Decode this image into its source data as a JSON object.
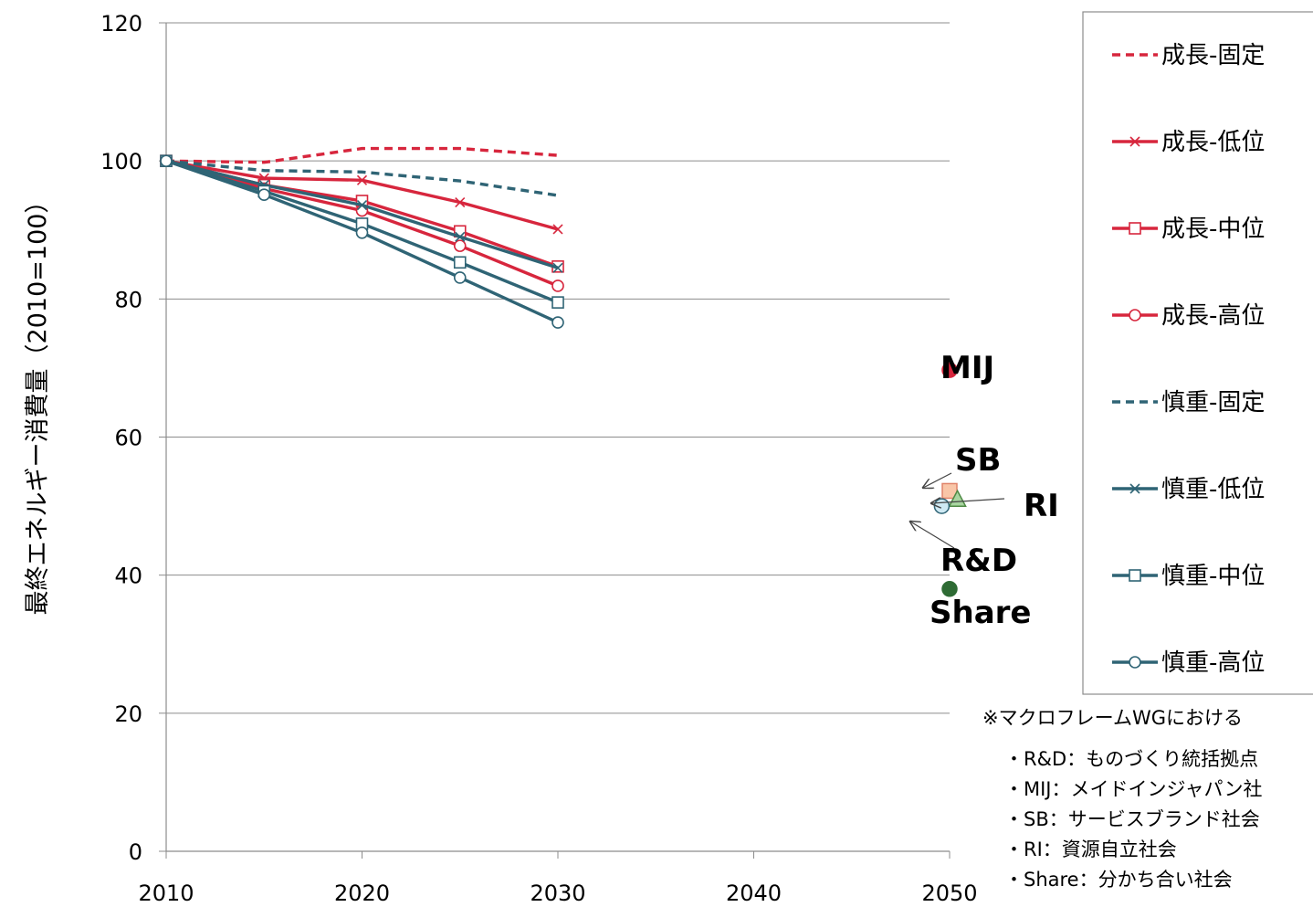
{
  "chart_data": {
    "type": "line",
    "title": "",
    "xlabel": "",
    "ylabel": "最終エネルギー消費量（2010=100）",
    "xlim": [
      2010,
      2050
    ],
    "ylim": [
      0,
      120
    ],
    "xticks": [
      2010,
      2020,
      2030,
      2040,
      2050
    ],
    "yticks": [
      0,
      20,
      40,
      60,
      80,
      100,
      120
    ],
    "grid": "horizontal",
    "legend_position": "right",
    "x": [
      2010,
      2015,
      2020,
      2025,
      2030
    ],
    "series": [
      {
        "name": "成長-固定",
        "color": "#d7263d",
        "dash": true,
        "marker": "none",
        "values": [
          100,
          99.8,
          101.8,
          101.8,
          100.8
        ]
      },
      {
        "name": "成長-低位",
        "color": "#d7263d",
        "dash": false,
        "marker": "x",
        "values": [
          100,
          97.5,
          97.2,
          94.0,
          90.1
        ]
      },
      {
        "name": "成長-中位",
        "color": "#d7263d",
        "dash": false,
        "marker": "square",
        "values": [
          100,
          96.5,
          94.2,
          89.8,
          84.7
        ]
      },
      {
        "name": "成長-高位",
        "color": "#d7263d",
        "dash": false,
        "marker": "circle",
        "values": [
          100,
          96.0,
          92.8,
          87.7,
          81.9
        ]
      },
      {
        "name": "慎重-固定",
        "color": "#2f6475",
        "dash": true,
        "marker": "none",
        "values": [
          100,
          98.6,
          98.4,
          97.1,
          95.0
        ]
      },
      {
        "name": "慎重-低位",
        "color": "#2f6475",
        "dash": false,
        "marker": "x",
        "values": [
          100,
          96.5,
          93.6,
          89.0,
          84.5
        ]
      },
      {
        "name": "慎重-中位",
        "color": "#2f6475",
        "dash": false,
        "marker": "square",
        "values": [
          100,
          95.6,
          90.9,
          85.3,
          79.5
        ]
      },
      {
        "name": "慎重-高位",
        "color": "#2f6475",
        "dash": false,
        "marker": "circle",
        "values": [
          100,
          95.1,
          89.6,
          83.1,
          76.6
        ]
      }
    ],
    "points_2050": [
      {
        "label": "MIJ",
        "x": 2050,
        "y": 69.7,
        "marker": "circle",
        "fill": "#d7263d",
        "stroke": "#d7263d"
      },
      {
        "label": "SB",
        "x": 2050,
        "y": 52.2,
        "marker": "square",
        "fill": "#f9c6a8",
        "stroke": "#e0836a"
      },
      {
        "label": "RI",
        "x": 2050.4,
        "y": 50.9,
        "marker": "triangle",
        "fill": "#a8d5a0",
        "stroke": "#4f8a45"
      },
      {
        "label": "R&D",
        "x": 2049.6,
        "y": 50.0,
        "marker": "circle",
        "fill": "#cfe9f3",
        "stroke": "#2f6475"
      },
      {
        "label": "Share",
        "x": 2050,
        "y": 38.0,
        "marker": "circle",
        "fill": "#2e6b34",
        "stroke": "#2e6b34"
      }
    ],
    "notes": [
      "※マクロフレームWGにおける",
      "・R&D：ものづくり統括拠点",
      "・MIJ：メイドインジャパン社",
      "・SB：サービスブランド社会",
      "・RI：資源自立社会",
      "・Share：分かち合い社会"
    ]
  }
}
